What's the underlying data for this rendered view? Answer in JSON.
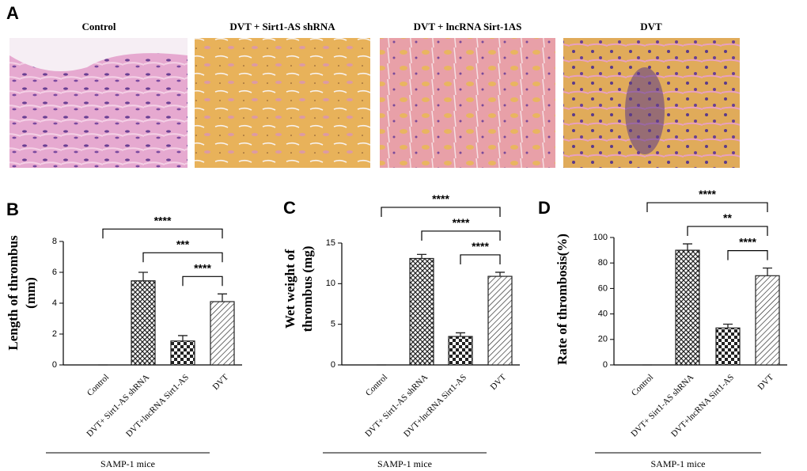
{
  "panel_a": {
    "letter": "A",
    "images": [
      {
        "title": "Control"
      },
      {
        "title": "DVT + Sirt1-AS shRNA"
      },
      {
        "title": "DVT + lncRNA Sirt-1AS"
      },
      {
        "title": "DVT"
      }
    ]
  },
  "chart_data": [
    {
      "type": "bar",
      "panel": "B",
      "ylabel": [
        "Length of thrombus",
        "(mm)"
      ],
      "categories": [
        "Control",
        "DVT+ Sirt1-AS shRNA",
        "DVT+lncRNA Sirt1-AS",
        "DVT"
      ],
      "values": [
        0,
        5.45,
        1.55,
        4.1
      ],
      "errors": [
        0,
        0.55,
        0.35,
        0.5
      ],
      "patterns": [
        "none",
        "crosshatch",
        "checker",
        "diagonal"
      ],
      "color": "#222222",
      "ylim": [
        0,
        8
      ],
      "yticks": [
        0,
        2,
        4,
        6,
        8
      ],
      "comparisons": [
        {
          "from": 0,
          "to": 3,
          "label": "****"
        },
        {
          "from": 1,
          "to": 3,
          "label": "***"
        },
        {
          "from": 2,
          "to": 3,
          "label": "****"
        }
      ],
      "group_label": "SAMP-1 mice"
    },
    {
      "type": "bar",
      "panel": "C",
      "ylabel": [
        "Wet weight of",
        "thrombus (mg)"
      ],
      "categories": [
        "Control",
        "DVT+ Sirt1-AS shRNA",
        "DVT+lncRNA Sirt1-AS",
        "DVT"
      ],
      "values": [
        0,
        13.1,
        3.5,
        10.9
      ],
      "errors": [
        0,
        0.5,
        0.45,
        0.5
      ],
      "patterns": [
        "none",
        "crosshatch",
        "checker",
        "diagonal"
      ],
      "color": "#222222",
      "ylim": [
        0,
        15
      ],
      "yticks": [
        0,
        5,
        10,
        15
      ],
      "comparisons": [
        {
          "from": 0,
          "to": 3,
          "label": "****"
        },
        {
          "from": 1,
          "to": 3,
          "label": "****"
        },
        {
          "from": 2,
          "to": 3,
          "label": "****"
        }
      ],
      "group_label": "SAMP-1 mice"
    },
    {
      "type": "bar",
      "panel": "D",
      "ylabel": [
        "Rate of thrombosis(%)"
      ],
      "categories": [
        "Control",
        "DVT+ Sirt1-AS shRNA",
        "DVT+lncRNA Sirt1-AS",
        "DVT"
      ],
      "values": [
        0,
        90,
        29,
        70
      ],
      "errors": [
        0,
        5,
        3,
        6
      ],
      "patterns": [
        "none",
        "crosshatch",
        "checker",
        "diagonal"
      ],
      "color": "#222222",
      "ylim": [
        0,
        100
      ],
      "yticks": [
        0,
        20,
        40,
        60,
        80,
        100
      ],
      "comparisons": [
        {
          "from": 0,
          "to": 3,
          "label": "****"
        },
        {
          "from": 1,
          "to": 3,
          "label": "**"
        },
        {
          "from": 2,
          "to": 3,
          "label": "****"
        }
      ],
      "group_label": "SAMP-1 mice"
    }
  ]
}
